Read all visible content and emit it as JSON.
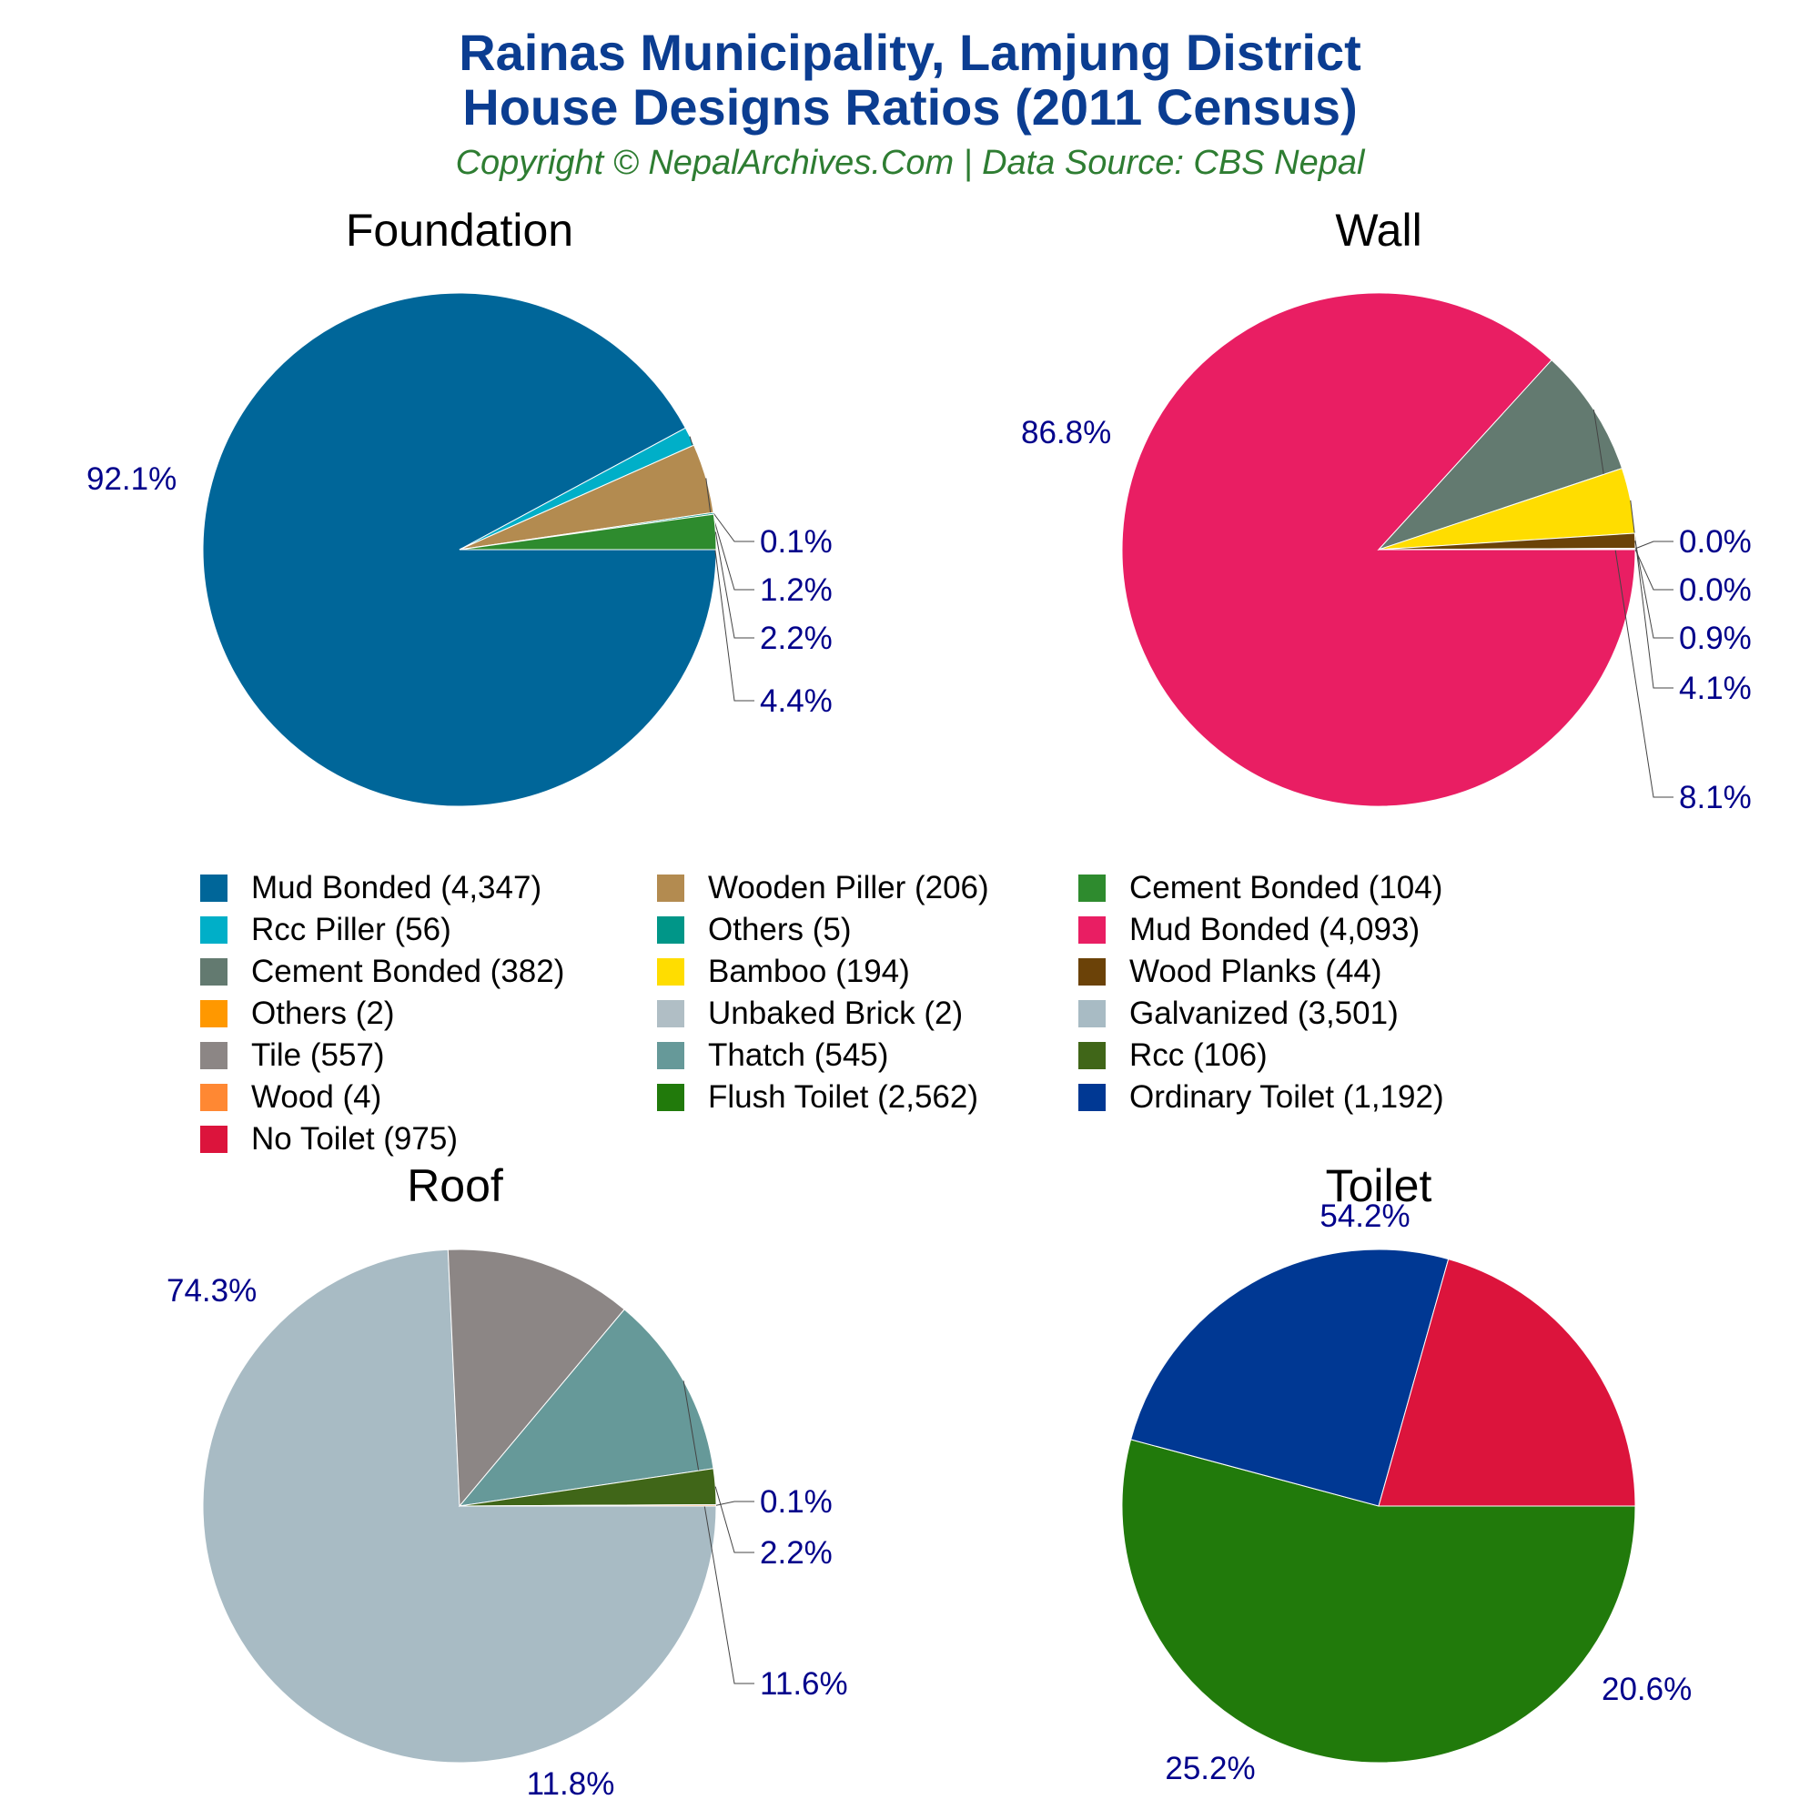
{
  "header": {
    "title_line1": "Rainas Municipality, Lamjung District",
    "title_line2": "House Designs Ratios (2011 Census)",
    "subtitle": "Copyright © NepalArchives.Com | Data Source: CBS Nepal"
  },
  "chart_data": [
    {
      "type": "pie",
      "title": "Foundation",
      "slices": [
        {
          "label": "Mud Bonded",
          "value": 4347,
          "percent": "92.1%",
          "color": "#006699"
        },
        {
          "label": "Rcc Piller",
          "value": 56,
          "percent": "1.2%",
          "color": "#00afc8"
        },
        {
          "label": "Wooden Piller",
          "value": 206,
          "percent": "4.4%",
          "color": "#b38b50"
        },
        {
          "label": "Others",
          "value": 5,
          "percent": "0.1%",
          "color": "#009688"
        },
        {
          "label": "Cement Bonded",
          "value": 104,
          "percent": "2.2%",
          "color": "#2e8b2e"
        }
      ]
    },
    {
      "type": "pie",
      "title": "Wall",
      "slices": [
        {
          "label": "Mud Bonded",
          "value": 4093,
          "percent": "86.8%",
          "color": "#e91e63"
        },
        {
          "label": "Cement Bonded",
          "value": 382,
          "percent": "8.1%",
          "color": "#637a70"
        },
        {
          "label": "Bamboo",
          "value": 194,
          "percent": "4.1%",
          "color": "#ffdd00"
        },
        {
          "label": "Wood Planks",
          "value": 44,
          "percent": "0.9%",
          "color": "#6b4208"
        },
        {
          "label": "Others",
          "value": 2,
          "percent": "0.0%",
          "color": "#ff9800"
        },
        {
          "label": "Unbaked Brick",
          "value": 2,
          "percent": "0.0%",
          "color": "#b0bec5"
        }
      ]
    },
    {
      "type": "pie",
      "title": "Roof",
      "slices": [
        {
          "label": "Galvanized",
          "value": 3501,
          "percent": "74.3%",
          "color": "#a8bbc4"
        },
        {
          "label": "Tile",
          "value": 557,
          "percent": "11.8%",
          "color": "#8c8685"
        },
        {
          "label": "Thatch",
          "value": 545,
          "percent": "11.6%",
          "color": "#669999"
        },
        {
          "label": "Rcc",
          "value": 106,
          "percent": "2.2%",
          "color": "#406618"
        },
        {
          "label": "Wood",
          "value": 4,
          "percent": "0.1%",
          "color": "#ff8833"
        }
      ]
    },
    {
      "type": "pie",
      "title": "Toilet",
      "slices": [
        {
          "label": "Flush Toilet",
          "value": 2562,
          "percent": "54.2%",
          "color": "#217a0b"
        },
        {
          "label": "Ordinary Toilet",
          "value": 1192,
          "percent": "25.2%",
          "color": "#003893"
        },
        {
          "label": "No Toilet",
          "value": 975,
          "percent": "20.6%",
          "color": "#dc143c"
        }
      ]
    }
  ],
  "legend": [
    {
      "label": "Mud Bonded (4,347)",
      "color": "#006699"
    },
    {
      "label": "Wooden Piller (206)",
      "color": "#b38b50"
    },
    {
      "label": "Cement Bonded (104)",
      "color": "#2e8b2e"
    },
    {
      "label": "Rcc Piller (56)",
      "color": "#00afc8"
    },
    {
      "label": "Others (5)",
      "color": "#009688"
    },
    {
      "label": "Mud Bonded (4,093)",
      "color": "#e91e63"
    },
    {
      "label": "Cement Bonded (382)",
      "color": "#637a70"
    },
    {
      "label": "Bamboo (194)",
      "color": "#ffdd00"
    },
    {
      "label": "Wood Planks (44)",
      "color": "#6b4208"
    },
    {
      "label": "Others (2)",
      "color": "#ff9800"
    },
    {
      "label": "Unbaked Brick (2)",
      "color": "#b0bec5"
    },
    {
      "label": "Galvanized (3,501)",
      "color": "#a8bbc4"
    },
    {
      "label": "Tile (557)",
      "color": "#8c8685"
    },
    {
      "label": "Thatch (545)",
      "color": "#669999"
    },
    {
      "label": "Rcc (106)",
      "color": "#406618"
    },
    {
      "label": "Wood (4)",
      "color": "#ff8833"
    },
    {
      "label": "Flush Toilet (2,562)",
      "color": "#217a0b"
    },
    {
      "label": "Ordinary Toilet (1,192)",
      "color": "#003893"
    },
    {
      "label": "No Toilet (975)",
      "color": "#dc143c"
    }
  ],
  "colors": {
    "title": "#0b3d91",
    "subtitle": "#2e7d32",
    "percent_label": "#00008b"
  }
}
